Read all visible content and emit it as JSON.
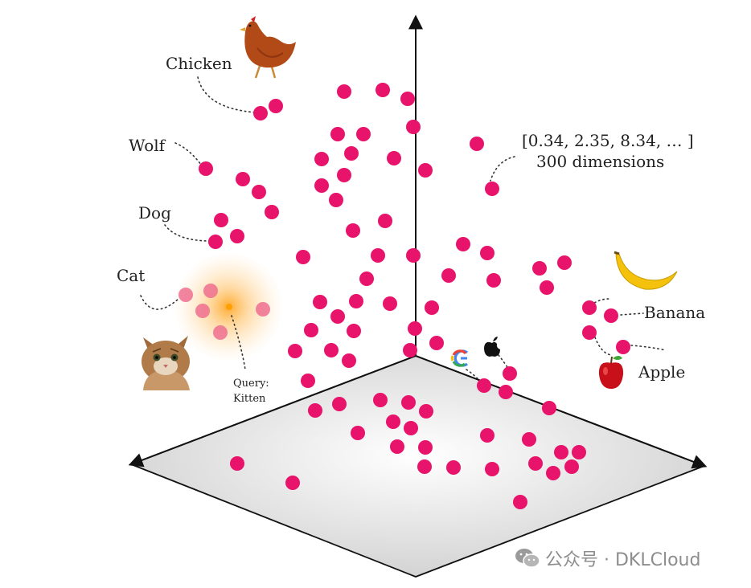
{
  "labels": {
    "chicken": "Chicken",
    "wolf": "Wolf",
    "dog": "Dog",
    "cat": "Cat",
    "query_line1": "Query:",
    "query_line2": "Kitten",
    "vector": "[0.34, 2.35, 8.34, … ]",
    "dimensions": "300 dimensions",
    "banana": "Banana",
    "apple": "Apple"
  },
  "watermark": {
    "text": "公众号 · DKLCloud",
    "icon": "wechat-icon"
  },
  "icons": [
    "chicken-icon",
    "cat-icon",
    "banana-icon",
    "apple-fruit-icon",
    "google-logo-icon",
    "apple-logo-icon"
  ],
  "colors": {
    "dot": "#e8136a",
    "query_glow": "#ffb347",
    "plane": "#d9d9d9"
  }
}
